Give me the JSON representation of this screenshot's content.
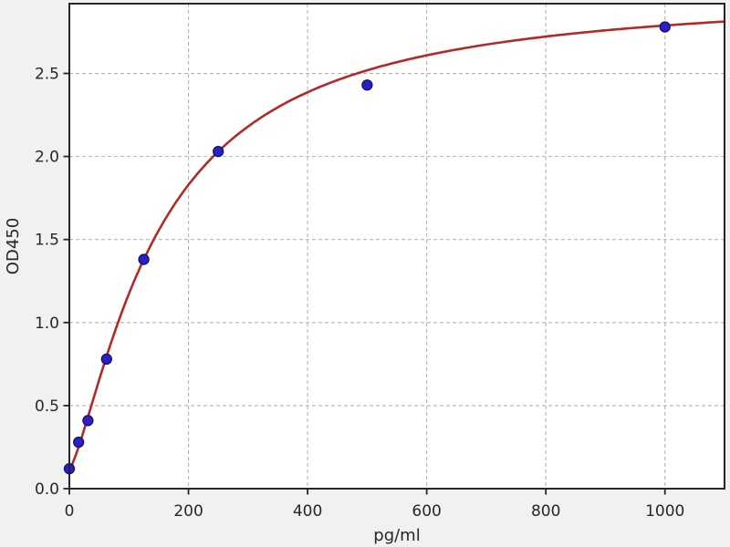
{
  "chart": {
    "xlabel": "pg/ml",
    "ylabel": "OD450"
  },
  "chart_data": {
    "type": "scatter",
    "title": "",
    "xlabel": "pg/ml",
    "ylabel": "OD450",
    "xlim": [
      0,
      1100
    ],
    "ylim": [
      0,
      2.92
    ],
    "xticks": [
      0,
      200,
      400,
      600,
      800,
      1000
    ],
    "xtick_labels": [
      "0",
      "200",
      "400",
      "600",
      "800",
      "1000"
    ],
    "yticks": [
      0,
      0.5,
      1.0,
      1.5,
      2.0,
      2.5
    ],
    "ytick_labels": [
      "0.0",
      "0.5",
      "1.0",
      "1.5",
      "2.0",
      "2.5"
    ],
    "grid": true,
    "grid_style": "dashed",
    "legend": false,
    "series": [
      {
        "name": "standard-points",
        "type": "scatter",
        "color": "#2a20c8",
        "edge_color": "#151068",
        "x": [
          0,
          15.6,
          31.25,
          62.5,
          125,
          250,
          500,
          1000
        ],
        "y": [
          0.12,
          0.28,
          0.41,
          0.78,
          1.38,
          2.03,
          2.43,
          2.78
        ]
      },
      {
        "name": "4pl-fit-curve",
        "type": "line",
        "color": "#b22929",
        "model": "4PL",
        "params": {
          "a": 0.12,
          "b": 1.34,
          "c": 150.8,
          "d": 3.0
        },
        "x_range": [
          0,
          1100
        ]
      }
    ]
  },
  "colors": {
    "figure_bg": "#f1f1ef",
    "plot_bg": "#ffffff",
    "grid": "#b3b3b3",
    "axis": "#262626",
    "text": "#262626"
  }
}
